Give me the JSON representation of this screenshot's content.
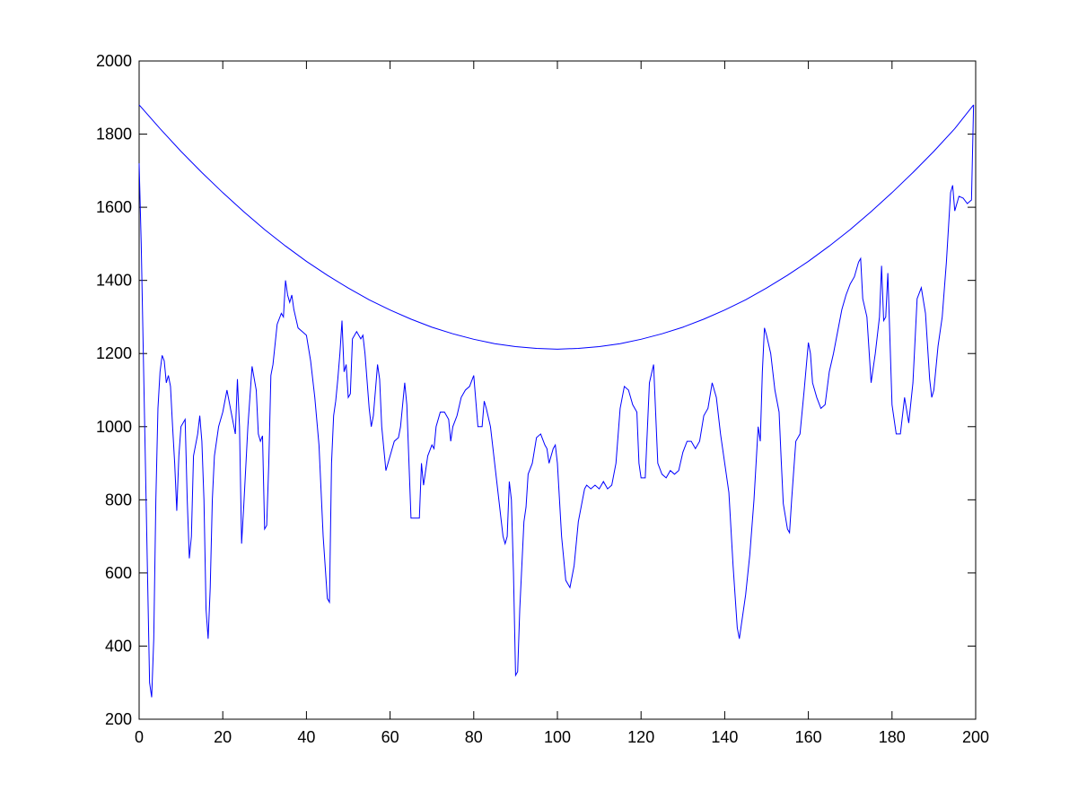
{
  "chart_data": {
    "type": "line",
    "xlim": [
      0,
      200
    ],
    "xticks": [
      0,
      20,
      40,
      60,
      80,
      100,
      120,
      140,
      160,
      180,
      200
    ],
    "ylim": [
      200,
      2000
    ],
    "yticks": [
      200,
      400,
      600,
      800,
      1000,
      1200,
      1400,
      1600,
      1800,
      2000
    ],
    "grid": false,
    "series": [
      {
        "color": "#0000ff",
        "x": [
          0,
          5,
          10,
          15,
          20,
          25,
          30,
          35,
          40,
          45,
          50,
          55,
          60,
          65,
          70,
          75,
          80,
          85,
          90,
          95,
          100,
          105,
          110,
          115,
          120,
          125,
          130,
          135,
          140,
          145,
          150,
          155,
          160,
          165,
          170,
          175,
          180,
          185,
          190,
          195,
          199.5
        ],
        "values": [
          1880,
          1815,
          1753,
          1695,
          1640,
          1588,
          1539,
          1494,
          1452,
          1414,
          1379,
          1347,
          1319,
          1294,
          1272,
          1254,
          1239,
          1227,
          1219,
          1214,
          1212,
          1214,
          1219,
          1227,
          1239,
          1254,
          1272,
          1294,
          1319,
          1347,
          1379,
          1414,
          1452,
          1494,
          1539,
          1588,
          1640,
          1695,
          1753,
          1815,
          1880
        ]
      },
      {
        "color": "#0000ff",
        "x": [
          0,
          0.5,
          1,
          1.5,
          2,
          2.5,
          3,
          3.5,
          4,
          4.5,
          5,
          5.5,
          6,
          6.5,
          7,
          7.5,
          8,
          8.5,
          9,
          9.5,
          10,
          11,
          11.5,
          12,
          12.5,
          13,
          14,
          14.5,
          15,
          15.5,
          16,
          16.5,
          17,
          17.5,
          18,
          19,
          20,
          21,
          22,
          23,
          23.5,
          24,
          24.5,
          25,
          26,
          27,
          28,
          28.5,
          29,
          29.5,
          30,
          30.5,
          31,
          31.5,
          32,
          33,
          34,
          34.5,
          35,
          35.5,
          36,
          36.5,
          37,
          38,
          39,
          40,
          41,
          42,
          43,
          44,
          45,
          45.5,
          46,
          46.5,
          47,
          47.5,
          48,
          48.5,
          49,
          49.5,
          50,
          50.5,
          51,
          52,
          53,
          53.5,
          54,
          55,
          55.5,
          56,
          57,
          57.5,
          58,
          59,
          60,
          61,
          62,
          62.5,
          63,
          63.5,
          64,
          65,
          66,
          67,
          67.5,
          68,
          69,
          70,
          70.5,
          71,
          72,
          73,
          74,
          74.5,
          75,
          76,
          77,
          78,
          79,
          80,
          81,
          82,
          82.5,
          83,
          84,
          85,
          86,
          87,
          87.5,
          88,
          88.5,
          89,
          89.5,
          90,
          90.5,
          91,
          92,
          92.5,
          93,
          94,
          95,
          96,
          97,
          97.5,
          98,
          99,
          99.5,
          100,
          101,
          102,
          103,
          104,
          105,
          106,
          106.5,
          107,
          108,
          109,
          110,
          111,
          112,
          113,
          114,
          115,
          116,
          117,
          118,
          119,
          119.5,
          120,
          121,
          122,
          123,
          124,
          125,
          126,
          127,
          128,
          129,
          130,
          131,
          132,
          133,
          134,
          135,
          136,
          137,
          138,
          139,
          140,
          141,
          142,
          143,
          143.5,
          144,
          145,
          146,
          147,
          148,
          148.5,
          149,
          149.5,
          150,
          151,
          152,
          153,
          153.5,
          154,
          155,
          155.5,
          156,
          157,
          158,
          159,
          160,
          160.5,
          161,
          162,
          163,
          164,
          165,
          166,
          167,
          168,
          169,
          170,
          171,
          172,
          172.5,
          173,
          174,
          175,
          176,
          177,
          177.5,
          178,
          178.5,
          179,
          180,
          181,
          182,
          183,
          184,
          185,
          186,
          187,
          188,
          189,
          189.5,
          190,
          191,
          192,
          193,
          194,
          194.5,
          195,
          196,
          197,
          198,
          199,
          199.5
        ],
        "values": [
          1720,
          1500,
          1200,
          900,
          600,
          300,
          260,
          420,
          800,
          1050,
          1150,
          1195,
          1180,
          1120,
          1140,
          1110,
          1000,
          900,
          770,
          920,
          1000,
          1020,
          800,
          640,
          700,
          920,
          980,
          1030,
          960,
          800,
          500,
          420,
          560,
          800,
          920,
          1000,
          1040,
          1100,
          1040,
          980,
          1130,
          1000,
          680,
          780,
          1000,
          1165,
          1100,
          980,
          960,
          975,
          720,
          730,
          900,
          1140,
          1170,
          1280,
          1310,
          1300,
          1400,
          1360,
          1340,
          1360,
          1320,
          1270,
          1260,
          1250,
          1180,
          1080,
          950,
          700,
          530,
          520,
          900,
          1030,
          1070,
          1130,
          1200,
          1290,
          1150,
          1170,
          1080,
          1090,
          1240,
          1260,
          1240,
          1250,
          1200,
          1050,
          1000,
          1030,
          1170,
          1130,
          1000,
          880,
          920,
          960,
          970,
          1000,
          1060,
          1120,
          1060,
          750,
          750,
          750,
          900,
          840,
          920,
          950,
          940,
          1000,
          1040,
          1040,
          1020,
          960,
          1000,
          1030,
          1080,
          1100,
          1110,
          1140,
          1000,
          1000,
          1070,
          1050,
          1000,
          900,
          800,
          700,
          680,
          700,
          850,
          800,
          600,
          320,
          330,
          500,
          740,
          780,
          870,
          900,
          970,
          980,
          950,
          940,
          900,
          940,
          950,
          900,
          700,
          580,
          560,
          620,
          740,
          800,
          830,
          840,
          830,
          840,
          830,
          850,
          830,
          840,
          900,
          1050,
          1110,
          1100,
          1060,
          1040,
          900,
          860,
          860,
          1120,
          1170,
          900,
          870,
          860,
          880,
          870,
          880,
          930,
          960,
          960,
          940,
          960,
          1030,
          1050,
          1120,
          1080,
          980,
          900,
          820,
          620,
          450,
          420,
          460,
          540,
          650,
          800,
          1000,
          960,
          1150,
          1270,
          1250,
          1200,
          1100,
          1040,
          910,
          790,
          720,
          710,
          800,
          960,
          980,
          1100,
          1230,
          1200,
          1120,
          1080,
          1050,
          1060,
          1150,
          1200,
          1260,
          1320,
          1360,
          1390,
          1410,
          1450,
          1460,
          1350,
          1300,
          1120,
          1200,
          1300,
          1440,
          1290,
          1300,
          1420,
          1060,
          980,
          980,
          1080,
          1010,
          1120,
          1350,
          1380,
          1310,
          1130,
          1080,
          1100,
          1220,
          1300,
          1450,
          1640,
          1660,
          1590,
          1630,
          1625,
          1610,
          1620,
          1880
        ]
      }
    ]
  }
}
